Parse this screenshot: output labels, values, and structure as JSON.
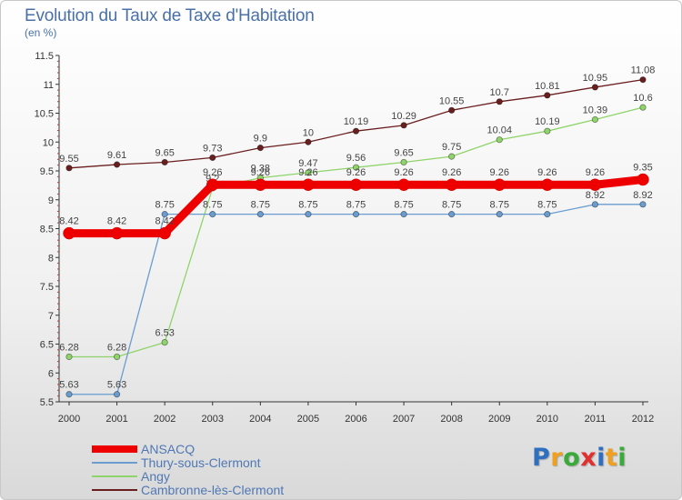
{
  "header": {
    "title": "Evolution du Taux de Taxe d'Habitation",
    "subtitle": "(en %)"
  },
  "chart_data": {
    "type": "line",
    "title": "Evolution du Taux de Taxe d'Habitation",
    "ylabel": "(en %)",
    "x": [
      2000,
      2001,
      2002,
      2003,
      2004,
      2005,
      2006,
      2007,
      2008,
      2009,
      2010,
      2011,
      2012
    ],
    "ylim": [
      5.5,
      11.5
    ],
    "yticks": [
      5.5,
      6,
      6.5,
      7,
      7.5,
      8,
      8.5,
      9,
      9.5,
      10,
      10.5,
      11,
      11.5
    ],
    "grid": false,
    "legend_position": "bottom-left",
    "series": [
      {
        "name": "Cambronne-lès-Clermont",
        "color": "#6a1f1f",
        "values": [
          9.55,
          9.61,
          9.65,
          9.73,
          9.9,
          10,
          10.19,
          10.29,
          10.55,
          10.7,
          10.81,
          10.95,
          11.08
        ]
      },
      {
        "name": "Angy",
        "color": "#8fd46a",
        "values": [
          6.28,
          6.28,
          6.53,
          9.2,
          9.38,
          9.47,
          9.56,
          9.65,
          9.75,
          10.04,
          10.19,
          10.39,
          10.6
        ]
      },
      {
        "name": "Thury-sous-Clermont",
        "color": "#6a9cd0",
        "values": [
          5.63,
          5.63,
          8.75,
          8.75,
          8.75,
          8.75,
          8.75,
          8.75,
          8.75,
          8.75,
          8.75,
          8.92,
          8.92
        ]
      },
      {
        "name": "ANSACQ",
        "color": "#ee0000",
        "values": [
          8.42,
          8.42,
          8.42,
          9.26,
          9.26,
          9.26,
          9.26,
          9.26,
          9.26,
          9.26,
          9.26,
          9.26,
          9.35
        ]
      }
    ]
  },
  "legend": {
    "items": [
      {
        "label": "ANSACQ",
        "color": "#ee0000"
      },
      {
        "label": "Thury-sous-Clermont",
        "color": "#6a9cd0"
      },
      {
        "label": "Angy",
        "color": "#8fd46a"
      },
      {
        "label": "Cambronne-lès-Clermont",
        "color": "#6a1f1f"
      }
    ]
  },
  "logo": {
    "text": "Proxiti",
    "letters": [
      {
        "ch": "P",
        "color": "#2f6fc0"
      },
      {
        "ch": "r",
        "color": "#f0a020"
      },
      {
        "ch": "o",
        "color": "#3aaa3a"
      },
      {
        "ch": "x",
        "color": "#e03030"
      },
      {
        "ch": "i",
        "color": "#2f6fc0"
      },
      {
        "ch": "t",
        "color": "#f0a020"
      },
      {
        "ch": "i",
        "color": "#3aaa3a"
      }
    ]
  }
}
